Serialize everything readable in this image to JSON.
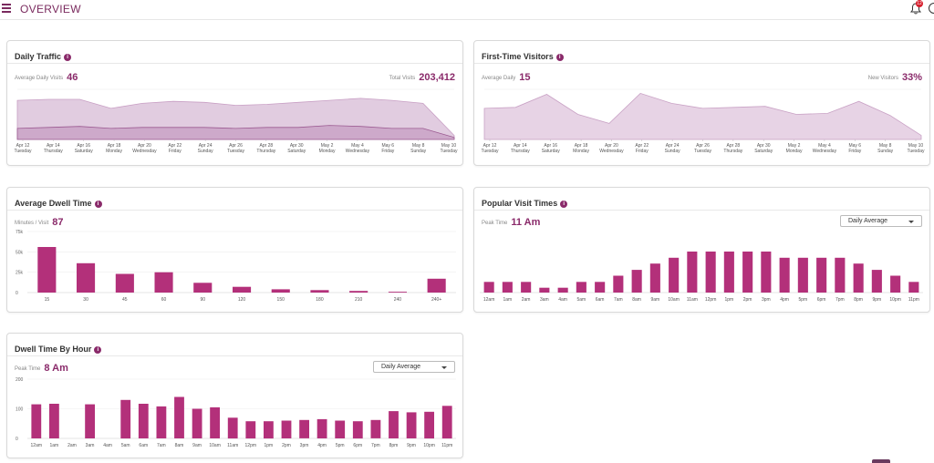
{
  "header": {
    "title": "OVERVIEW",
    "notifications": "12"
  },
  "colors": {
    "accent": "#8a2a6a",
    "bar": "#b3307a",
    "area1": "#d9bcd6",
    "area2": "#c79fc3",
    "area3": "#e4cde0"
  },
  "daily_traffic": {
    "title": "Daily Traffic",
    "avg_label": "Average Daily Visits",
    "avg_value": "46",
    "total_label": "Total Visits",
    "total_value": "203,412",
    "chart_data": {
      "type": "area",
      "x": [
        [
          "Apr 12",
          "Tuesday"
        ],
        [
          "Apr 14",
          "Thursday"
        ],
        [
          "Apr 16",
          "Saturday"
        ],
        [
          "Apr 18",
          "Monday"
        ],
        [
          "Apr 20",
          "Wednesday"
        ],
        [
          "Apr 22",
          "Friday"
        ],
        [
          "Apr 24",
          "Sunday"
        ],
        [
          "Apr 26",
          "Tuesday"
        ],
        [
          "Apr 28",
          "Thursday"
        ],
        [
          "Apr 30",
          "Saturday"
        ],
        [
          "May 2",
          "Monday"
        ],
        [
          "May 4",
          "Wednesday"
        ],
        [
          "May 6",
          "Friday"
        ],
        [
          "May 8",
          "Sunday"
        ],
        [
          "May 10",
          "Tuesday"
        ]
      ],
      "series": [
        {
          "values": [
            0.78,
            0.8,
            0.8,
            0.62,
            0.72,
            0.76,
            0.74,
            0.68,
            0.7,
            0.74,
            0.78,
            0.82,
            0.78,
            0.72,
            0.08
          ]
        },
        {
          "values": [
            0.22,
            0.24,
            0.26,
            0.22,
            0.24,
            0.24,
            0.24,
            0.22,
            0.24,
            0.24,
            0.28,
            0.26,
            0.22,
            0.22,
            0.04
          ]
        }
      ]
    }
  },
  "first_time": {
    "title": "First-Time Visitors",
    "avg_label": "Average Daily",
    "avg_value": "15",
    "new_label": "New Visitors",
    "new_value": "33%",
    "chart_data": {
      "type": "area",
      "x": [
        [
          "Apr 12",
          "Tuesday"
        ],
        [
          "Apr 14",
          "Thursday"
        ],
        [
          "Apr 16",
          "Saturday"
        ],
        [
          "Apr 18",
          "Monday"
        ],
        [
          "Apr 20",
          "Wednesday"
        ],
        [
          "Apr 22",
          "Friday"
        ],
        [
          "Apr 24",
          "Sunday"
        ],
        [
          "Apr 26",
          "Tuesday"
        ],
        [
          "Apr 28",
          "Thursday"
        ],
        [
          "Apr 30",
          "Saturday"
        ],
        [
          "May 2",
          "Monday"
        ],
        [
          "May 4",
          "Wednesday"
        ],
        [
          "May 6",
          "Friday"
        ],
        [
          "May 8",
          "Sunday"
        ],
        [
          "May 10",
          "Tuesday"
        ]
      ],
      "values": [
        0.62,
        0.64,
        0.9,
        0.5,
        0.32,
        0.92,
        0.72,
        0.62,
        0.64,
        0.66,
        0.5,
        0.52,
        0.76,
        0.48,
        0.08
      ]
    }
  },
  "dwell": {
    "title": "Average Dwell Time",
    "stat_label": "Minutes / Visit",
    "stat_value": "87",
    "chart_data": {
      "type": "bar",
      "categories": [
        "15",
        "30",
        "45",
        "60",
        "90",
        "120",
        "150",
        "180",
        "210",
        "240",
        "240+"
      ],
      "values": [
        56000,
        36000,
        23000,
        25000,
        12000,
        7000,
        4000,
        3000,
        2000,
        1000,
        17000
      ],
      "yticks": [
        "0",
        "25k",
        "50k",
        "75k"
      ],
      "ylim": [
        0,
        75000
      ]
    }
  },
  "popular": {
    "title": "Popular Visit Times",
    "stat_label": "Peak Time",
    "stat_value": "11 Am",
    "dropdown": "Daily Average",
    "chart_data": {
      "type": "bar",
      "categories": [
        "12am",
        "1am",
        "2am",
        "3am",
        "4am",
        "5am",
        "6am",
        "7am",
        "8am",
        "9am",
        "10am",
        "11am",
        "12pm",
        "1pm",
        "2pm",
        "3pm",
        "4pm",
        "5pm",
        "6pm",
        "7pm",
        "8pm",
        "9pm",
        "10pm",
        "11pm"
      ],
      "values": [
        0.22,
        0.22,
        0.22,
        0.1,
        0.1,
        0.22,
        0.22,
        0.35,
        0.47,
        0.6,
        0.72,
        0.85,
        0.85,
        0.85,
        0.85,
        0.85,
        0.72,
        0.72,
        0.72,
        0.72,
        0.6,
        0.47,
        0.35,
        0.22
      ]
    }
  },
  "dwell_hour": {
    "title": "Dwell Time By Hour",
    "stat_label": "Peak Time",
    "stat_value": "8 Am",
    "dropdown": "Daily Average",
    "chart_data": {
      "type": "bar",
      "categories": [
        "12am",
        "1am",
        "2am",
        "3am",
        "4am",
        "5am",
        "6am",
        "7am",
        "8am",
        "9am",
        "10am",
        "11am",
        "12pm",
        "1pm",
        "2pm",
        "3pm",
        "4pm",
        "5pm",
        "6pm",
        "7pm",
        "8pm",
        "9pm",
        "10pm",
        "11pm"
      ],
      "values": [
        115,
        117,
        0,
        115,
        0,
        130,
        117,
        108,
        140,
        100,
        105,
        70,
        58,
        58,
        60,
        62,
        65,
        60,
        58,
        62,
        92,
        88,
        90,
        110
      ],
      "yticks": [
        "0",
        "100",
        "200"
      ],
      "ylim": [
        0,
        200
      ]
    }
  }
}
